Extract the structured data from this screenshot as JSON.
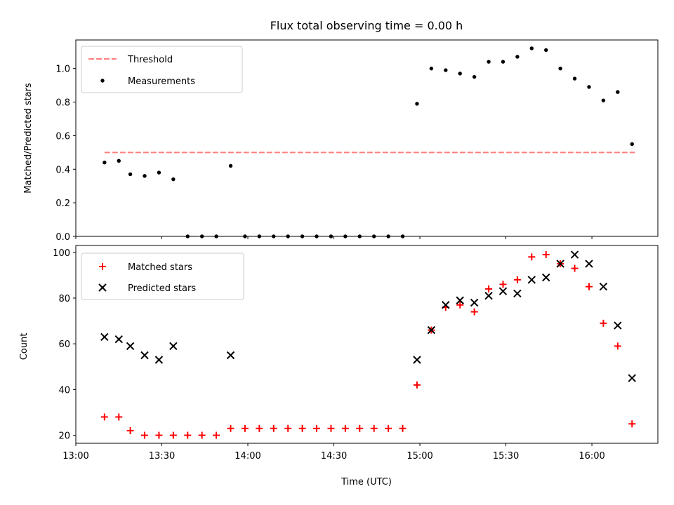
{
  "chart_data": [
    {
      "type": "scatter",
      "title": "Flux total observing time = 0.00 h",
      "xlabel": "",
      "ylabel": "Matched/Predicted stars",
      "ylim": [
        0,
        1.17
      ],
      "yticks": [
        "0.0",
        "0.2",
        "0.4",
        "0.6",
        "0.8",
        "1.0"
      ],
      "ytick_values": [
        0,
        0.2,
        0.4,
        0.6,
        0.8,
        1.0
      ],
      "legend_position": "top-left",
      "threshold": {
        "name": "Threshold",
        "value": 0.5,
        "color": "#ff7f7f",
        "style": "dashed",
        "x_start": "13:10",
        "x_end": "16:15"
      },
      "series": [
        {
          "name": "Measurements",
          "color": "#000000",
          "marker": "dot",
          "points": [
            [
              "13:10",
              0.44
            ],
            [
              "13:15",
              0.45
            ],
            [
              "13:19",
              0.37
            ],
            [
              "13:24",
              0.36
            ],
            [
              "13:29",
              0.38
            ],
            [
              "13:34",
              0.34
            ],
            [
              "13:39",
              0.0
            ],
            [
              "13:44",
              0.0
            ],
            [
              "13:49",
              0.0
            ],
            [
              "13:54",
              0.42
            ],
            [
              "13:59",
              0.0
            ],
            [
              "14:04",
              0.0
            ],
            [
              "14:09",
              0.0
            ],
            [
              "14:14",
              0.0
            ],
            [
              "14:19",
              0.0
            ],
            [
              "14:24",
              0.0
            ],
            [
              "14:29",
              0.0
            ],
            [
              "14:34",
              0.0
            ],
            [
              "14:39",
              0.0
            ],
            [
              "14:44",
              0.0
            ],
            [
              "14:49",
              0.0
            ],
            [
              "14:54",
              0.0
            ],
            [
              "14:59",
              0.79
            ],
            [
              "15:04",
              1.0
            ],
            [
              "15:09",
              0.99
            ],
            [
              "15:14",
              0.97
            ],
            [
              "15:19",
              0.95
            ],
            [
              "15:24",
              1.04
            ],
            [
              "15:29",
              1.04
            ],
            [
              "15:34",
              1.07
            ],
            [
              "15:39",
              1.12
            ],
            [
              "15:44",
              1.11
            ],
            [
              "15:49",
              1.0
            ],
            [
              "15:54",
              0.94
            ],
            [
              "15:59",
              0.89
            ],
            [
              "16:04",
              0.81
            ],
            [
              "16:09",
              0.86
            ],
            [
              "16:14",
              0.55
            ]
          ]
        }
      ]
    },
    {
      "type": "scatter",
      "title": "",
      "xlabel": "Time (UTC)",
      "ylabel": "Count",
      "ylim": [
        16.5,
        103
      ],
      "yticks": [
        "20",
        "40",
        "60",
        "80",
        "100"
      ],
      "ytick_values": [
        20,
        40,
        60,
        80,
        100
      ],
      "xlim": [
        "13:00",
        "16:23"
      ],
      "xticks": [
        "13:00",
        "13:30",
        "14:00",
        "14:30",
        "15:00",
        "15:30",
        "16:00"
      ],
      "legend_position": "top-left",
      "series": [
        {
          "name": "Matched stars",
          "color": "#ff0000",
          "marker": "plus",
          "points": [
            [
              "13:10",
              28
            ],
            [
              "13:15",
              28
            ],
            [
              "13:19",
              22
            ],
            [
              "13:24",
              20
            ],
            [
              "13:29",
              20
            ],
            [
              "13:34",
              20
            ],
            [
              "13:39",
              20
            ],
            [
              "13:44",
              20
            ],
            [
              "13:49",
              20
            ],
            [
              "13:54",
              23
            ],
            [
              "13:59",
              23
            ],
            [
              "14:04",
              23
            ],
            [
              "14:09",
              23
            ],
            [
              "14:14",
              23
            ],
            [
              "14:19",
              23
            ],
            [
              "14:24",
              23
            ],
            [
              "14:29",
              23
            ],
            [
              "14:34",
              23
            ],
            [
              "14:39",
              23
            ],
            [
              "14:44",
              23
            ],
            [
              "14:49",
              23
            ],
            [
              "14:54",
              23
            ],
            [
              "14:59",
              42
            ],
            [
              "15:04",
              66
            ],
            [
              "15:09",
              76
            ],
            [
              "15:14",
              77
            ],
            [
              "15:19",
              74
            ],
            [
              "15:24",
              84
            ],
            [
              "15:29",
              86
            ],
            [
              "15:34",
              88
            ],
            [
              "15:39",
              98
            ],
            [
              "15:44",
              99
            ],
            [
              "15:49",
              95
            ],
            [
              "15:54",
              93
            ],
            [
              "15:59",
              85
            ],
            [
              "16:04",
              69
            ],
            [
              "16:09",
              59
            ],
            [
              "16:14",
              25
            ]
          ]
        },
        {
          "name": "Predicted stars",
          "color": "#000000",
          "marker": "x",
          "points": [
            [
              "13:10",
              63
            ],
            [
              "13:15",
              62
            ],
            [
              "13:19",
              59
            ],
            [
              "13:24",
              55
            ],
            [
              "13:29",
              53
            ],
            [
              "13:34",
              59
            ],
            [
              "13:54",
              55
            ],
            [
              "14:59",
              53
            ],
            [
              "15:04",
              66
            ],
            [
              "15:09",
              77
            ],
            [
              "15:14",
              79
            ],
            [
              "15:19",
              78
            ],
            [
              "15:24",
              81
            ],
            [
              "15:29",
              83
            ],
            [
              "15:34",
              82
            ],
            [
              "15:39",
              88
            ],
            [
              "15:44",
              89
            ],
            [
              "15:49",
              95
            ],
            [
              "15:54",
              99
            ],
            [
              "15:59",
              95
            ],
            [
              "16:04",
              85
            ],
            [
              "16:09",
              68
            ],
            [
              "16:14",
              45
            ]
          ]
        }
      ]
    }
  ]
}
